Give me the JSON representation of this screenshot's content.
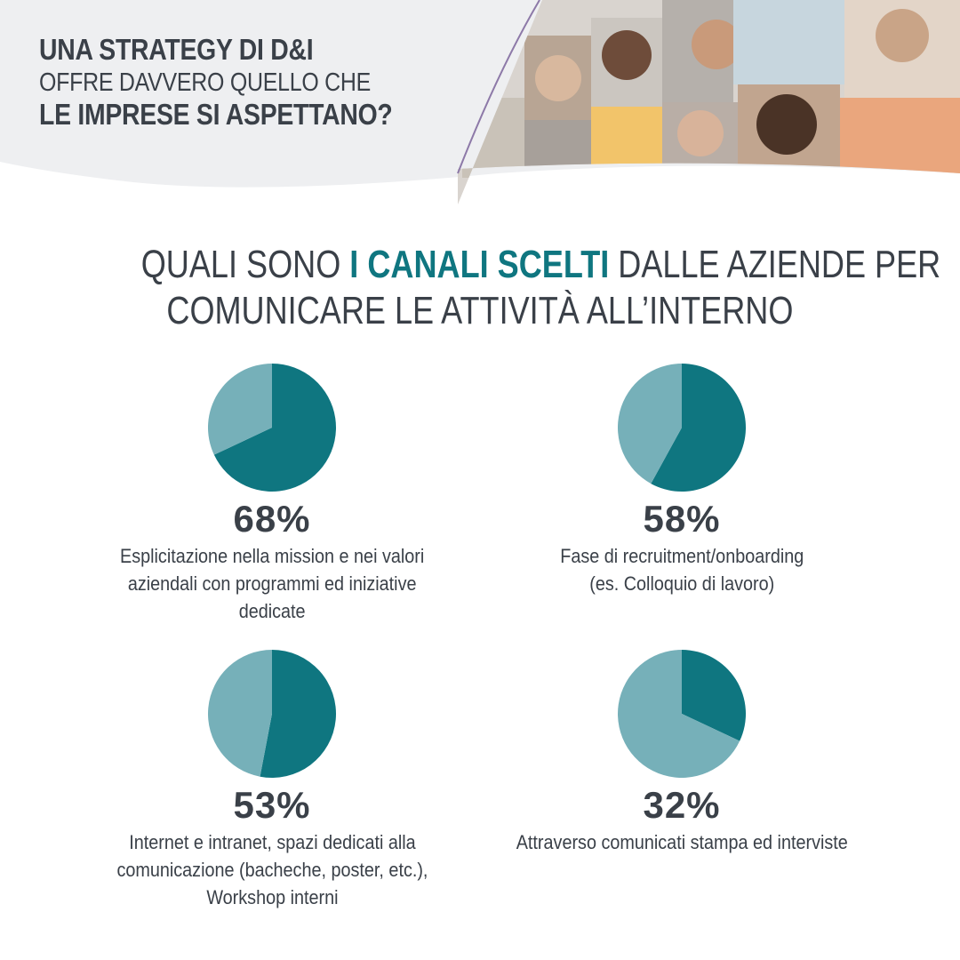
{
  "header": {
    "title_line1": "UNA STRATEGY DI D&I",
    "title_line2": "OFFRE DAVVERO QUELLO CHE",
    "title_line3": "LE IMPRESE SI ASPETTANO?"
  },
  "question": {
    "part1": "QUALI SONO ",
    "highlight": "I CANALI SCELTI",
    "part2": " DALLE AZIENDE PER",
    "line2": "COMUNICARE LE ATTIVITÀ ALL’INTERNO"
  },
  "colors": {
    "primary": "#0f7680",
    "secondary": "#76b0b9",
    "text": "#3a4048"
  },
  "chart_data": [
    {
      "type": "pie",
      "slices": [
        {
          "value": 68
        },
        {
          "value": 32
        }
      ],
      "value_label": "68%",
      "description": "Esplicitazione nella mission e nei valori\naziendali con programmi ed iniziative\ndedicate"
    },
    {
      "type": "pie",
      "slices": [
        {
          "value": 58
        },
        {
          "value": 42
        }
      ],
      "value_label": "58%",
      "description": "Fase di recruitment/onboarding\n(es. Colloquio di lavoro)"
    },
    {
      "type": "pie",
      "slices": [
        {
          "value": 53
        },
        {
          "value": 47
        }
      ],
      "value_label": "53%",
      "description": "Internet e intranet, spazi dedicati alla\ncomunicazione (bacheche, poster, etc.),\nWorkshop interni"
    },
    {
      "type": "pie",
      "slices": [
        {
          "value": 32
        },
        {
          "value": 68
        }
      ],
      "value_label": "32%",
      "description": "Attraverso comunicati stampa ed interviste"
    }
  ]
}
